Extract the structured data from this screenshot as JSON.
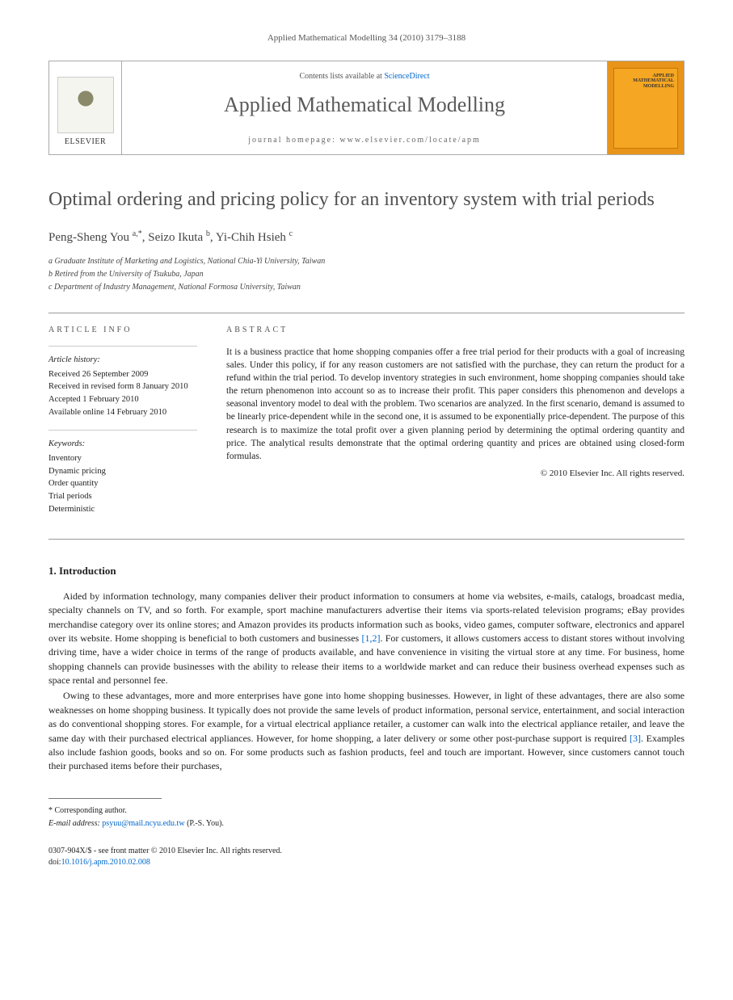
{
  "header_citation": "Applied Mathematical Modelling 34 (2010) 3179–3188",
  "banner": {
    "publisher": "ELSEVIER",
    "contents_prefix": "Contents lists available at ",
    "contents_link": "ScienceDirect",
    "journal_name": "Applied Mathematical Modelling",
    "homepage_label": "journal homepage: www.elsevier.com/locate/apm",
    "cover_title": "APPLIED MATHEMATICAL MODELLING"
  },
  "title": "Optimal ordering and pricing policy for an inventory system with trial periods",
  "authors_html": "Peng-Sheng You <sup>a,*</sup>, Seizo Ikuta <sup>b</sup>, Yi-Chih Hsieh <sup>c</sup>",
  "affiliations": [
    "a Graduate Institute of Marketing and Logistics, National Chia-Yi University, Taiwan",
    "b Retired from the University of Tsukuba, Japan",
    "c Department of Industry Management, National Formosa University, Taiwan"
  ],
  "article_info": {
    "heading": "ARTICLE INFO",
    "history_label": "Article history:",
    "history": [
      "Received 26 September 2009",
      "Received in revised form 8 January 2010",
      "Accepted 1 February 2010",
      "Available online 14 February 2010"
    ],
    "keywords_label": "Keywords:",
    "keywords": [
      "Inventory",
      "Dynamic pricing",
      "Order quantity",
      "Trial periods",
      "Deterministic"
    ]
  },
  "abstract": {
    "heading": "ABSTRACT",
    "text": "It is a business practice that home shopping companies offer a free trial period for their products with a goal of increasing sales. Under this policy, if for any reason customers are not satisfied with the purchase, they can return the product for a refund within the trial period. To develop inventory strategies in such environment, home shopping companies should take the return phenomenon into account so as to increase their profit. This paper considers this phenomenon and develops a seasonal inventory model to deal with the problem. Two scenarios are analyzed. In the first scenario, demand is assumed to be linearly price-dependent while in the second one, it is assumed to be exponentially price-dependent. The purpose of this research is to maximize the total profit over a given planning period by determining the optimal ordering quantity and price. The analytical results demonstrate that the optimal ordering quantity and prices are obtained using closed-form formulas.",
    "copyright": "© 2010 Elsevier Inc. All rights reserved."
  },
  "sections": {
    "intro_heading": "1. Introduction",
    "intro_p1_a": "Aided by information technology, many companies deliver their product information to consumers at home via websites, e-mails, catalogs, broadcast media, specialty channels on TV, and so forth. For example, sport machine manufacturers advertise their items via sports-related television programs; eBay provides merchandise category over its online stores; and Amazon provides its products information such as books, video games, computer software, electronics and apparel over its website. Home shopping is beneficial to both customers and businesses ",
    "intro_p1_ref": "[1,2]",
    "intro_p1_b": ". For customers, it allows customers access to distant stores without involving driving time, have a wider choice in terms of the range of products available, and have convenience in visiting the virtual store at any time. For business, home shopping channels can provide businesses with the ability to release their items to a worldwide market and can reduce their business overhead expenses such as space rental and personnel fee.",
    "intro_p2_a": "Owing to these advantages, more and more enterprises have gone into home shopping businesses. However, in light of these advantages, there are also some weaknesses on home shopping business. It typically does not provide the same levels of product information, personal service, entertainment, and social interaction as do conventional shopping stores. For example, for a virtual electrical appliance retailer, a customer can walk into the electrical appliance retailer, and leave the same day with their purchased electrical appliances. However, for home shopping, a later delivery or some other post-purchase support is required ",
    "intro_p2_ref": "[3]",
    "intro_p2_b": ". Examples also include fashion goods, books and so on. For some products such as fashion products, feel and touch are important. However, since customers cannot touch their purchased items before their purchases,"
  },
  "footnotes": {
    "corresponding": "* Corresponding author.",
    "email_label": "E-mail address: ",
    "email": "psyuu@mail.ncyu.edu.tw",
    "email_suffix": " (P.-S. You)."
  },
  "footer": {
    "issn_line": "0307-904X/$ - see front matter © 2010 Elsevier Inc. All rights reserved.",
    "doi_label": "doi:",
    "doi": "10.1016/j.apm.2010.02.008"
  }
}
